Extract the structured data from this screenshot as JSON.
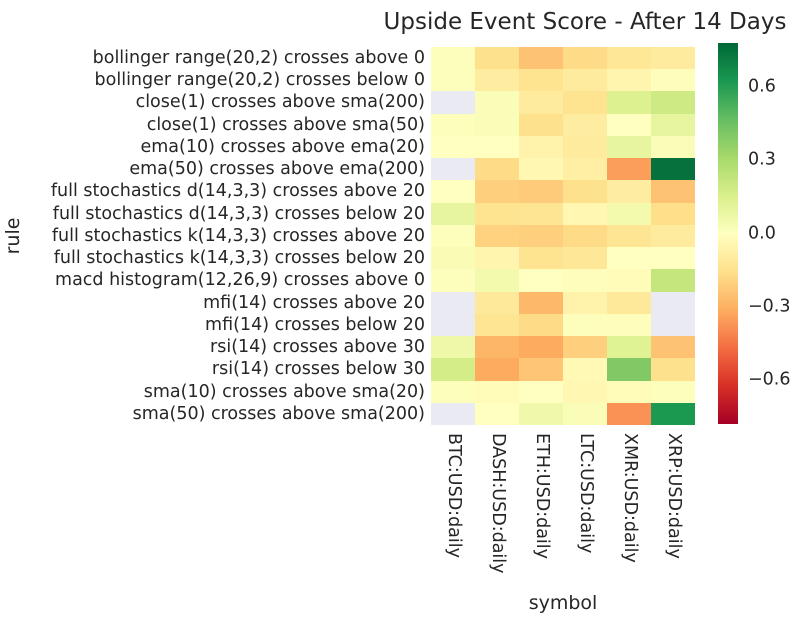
{
  "chart_data": {
    "type": "heatmap",
    "title": "Upside Event Score - After 14 Days",
    "xlabel": "symbol",
    "ylabel": "rule",
    "legend_position": "right-colorbar",
    "grid": false,
    "columns": [
      "BTC:USD:daily",
      "DASH:USD:daily",
      "ETH:USD:daily",
      "LTC:USD:daily",
      "XMR:USD:daily",
      "XRP:USD:daily"
    ],
    "rows": [
      "bollinger range(20,2) crosses above 0",
      "bollinger range(20,2) crosses below 0",
      "close(1) crosses above sma(200)",
      "close(1) crosses above sma(50)",
      "ema(10) crosses above ema(20)",
      "ema(50) crosses above ema(200)",
      "full stochastics d(14,3,3) crosses above 20",
      "full stochastics d(14,3,3) crosses below 20",
      "full stochastics k(14,3,3) crosses above 20",
      "full stochastics k(14,3,3) crosses below 20",
      "macd histogram(12,26,9) crosses above 0",
      "mfi(14) crosses above 20",
      "mfi(14) crosses below 20",
      "rsi(14) crosses above 30",
      "rsi(14) crosses below 30",
      "sma(10) crosses above sma(20)",
      "sma(50) crosses above sma(200)"
    ],
    "values": [
      [
        0.01,
        -0.15,
        -0.25,
        -0.17,
        -0.12,
        -0.1
      ],
      [
        0.01,
        -0.09,
        -0.14,
        -0.1,
        -0.05,
        -0.01
      ],
      [
        null,
        0.02,
        -0.1,
        -0.14,
        0.14,
        0.19
      ],
      [
        0.01,
        0.02,
        -0.15,
        -0.09,
        0.0,
        0.1
      ],
      [
        0.0,
        0.0,
        -0.06,
        -0.1,
        0.1,
        0.02
      ],
      [
        null,
        -0.17,
        -0.04,
        -0.08,
        -0.35,
        0.75
      ],
      [
        0.0,
        -0.21,
        -0.22,
        -0.15,
        -0.09,
        -0.25
      ],
      [
        0.1,
        -0.14,
        -0.13,
        -0.04,
        0.05,
        -0.16
      ],
      [
        0.01,
        -0.2,
        -0.21,
        -0.17,
        -0.13,
        -0.1
      ],
      [
        0.03,
        -0.05,
        -0.14,
        -0.12,
        0.0,
        0.0
      ],
      [
        0.01,
        0.05,
        0.0,
        -0.01,
        -0.02,
        0.22
      ],
      [
        null,
        -0.11,
        -0.28,
        -0.06,
        -0.11,
        null
      ],
      [
        null,
        -0.13,
        -0.17,
        0.01,
        -0.01,
        null
      ],
      [
        0.07,
        -0.29,
        -0.32,
        -0.21,
        0.13,
        -0.25
      ],
      [
        0.17,
        -0.32,
        -0.24,
        -0.03,
        0.4,
        -0.15
      ],
      [
        0.01,
        -0.02,
        0.0,
        -0.04,
        -0.02,
        0.01
      ],
      [
        null,
        0.0,
        0.06,
        0.02,
        -0.38,
        0.62
      ]
    ],
    "colormap": "RdYlGn",
    "colormap_colors": [
      "#A50026",
      "#D73027",
      "#F46D43",
      "#FDAE61",
      "#FEE08B",
      "#FFFFBF",
      "#D9EF8B",
      "#A6D96A",
      "#66BD63",
      "#1A9850",
      "#006837"
    ],
    "vmin": -0.78,
    "vmax": 0.78,
    "nan_color": "#EAEAF2",
    "text_color": "#262626",
    "colorbar_ticks": [
      {
        "value": 0.6,
        "label": "0.6"
      },
      {
        "value": 0.3,
        "label": "0.3"
      },
      {
        "value": 0.0,
        "label": "0.0"
      },
      {
        "value": -0.3,
        "label": "−0.3"
      },
      {
        "value": -0.6,
        "label": "−0.6"
      }
    ]
  }
}
